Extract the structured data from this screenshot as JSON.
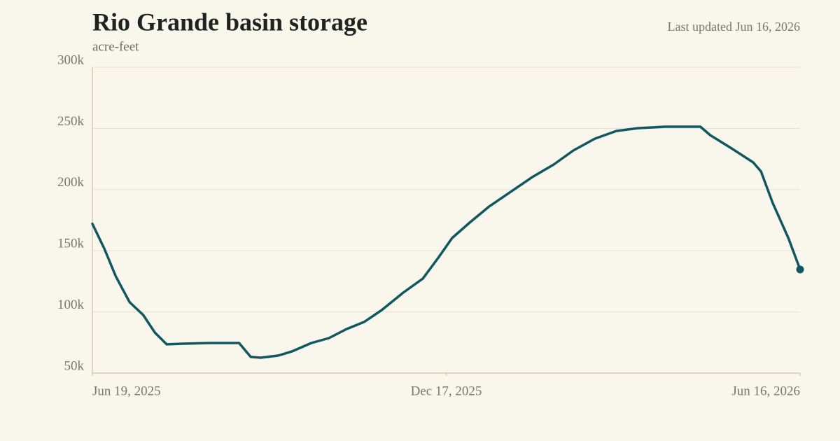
{
  "chart_data": {
    "type": "line",
    "title": "Rio Grande basin storage",
    "subtitle": "acre-feet",
    "annotation": "Last updated Jun 16, 2026",
    "x": [
      "2025-06-19",
      "2025-06-25",
      "2025-07-01",
      "2025-07-08",
      "2025-07-15",
      "2025-07-21",
      "2025-07-27",
      "2025-08-04",
      "2025-08-18",
      "2025-09-02",
      "2025-09-08",
      "2025-09-13",
      "2025-09-22",
      "2025-09-29",
      "2025-10-09",
      "2025-10-18",
      "2025-10-27",
      "2025-11-05",
      "2025-11-14",
      "2025-11-25",
      "2025-12-05",
      "2025-12-13",
      "2025-12-20",
      "2025-12-29",
      "2026-01-08",
      "2026-01-19",
      "2026-01-30",
      "2026-02-10",
      "2026-02-20",
      "2026-03-03",
      "2026-03-14",
      "2026-03-25",
      "2026-04-08",
      "2026-04-26",
      "2026-05-01",
      "2026-05-12",
      "2026-05-23",
      "2026-05-27",
      "2026-06-02",
      "2026-06-10",
      "2026-06-16"
    ],
    "series": [
      {
        "name": "Storage",
        "color": "#10575f",
        "values": [
          172000,
          152000,
          129000,
          108000,
          97500,
          83000,
          73500,
          74000,
          74600,
          74600,
          63200,
          62600,
          64300,
          67700,
          74600,
          78600,
          86000,
          91800,
          101500,
          115800,
          127200,
          144400,
          160400,
          173000,
          186200,
          198200,
          210200,
          220500,
          231900,
          241600,
          247900,
          250200,
          251400,
          251400,
          244500,
          233600,
          222200,
          214800,
          189000,
          160400,
          134700
        ]
      }
    ],
    "xlim": [
      "2025-06-19",
      "2026-06-16"
    ],
    "xticks": [
      {
        "value": "2025-06-19",
        "label": "Jun 19, 2025"
      },
      {
        "value": "2025-12-17",
        "label": "Dec 17, 2025"
      },
      {
        "value": "2026-06-16",
        "label": "Jun 16, 2026"
      }
    ],
    "ylim": [
      50000,
      300000
    ],
    "yticks": [
      {
        "value": 50000,
        "label": "50k"
      },
      {
        "value": 100000,
        "label": "100k"
      },
      {
        "value": 150000,
        "label": "150k"
      },
      {
        "value": 200000,
        "label": "200k"
      },
      {
        "value": 250000,
        "label": "250k"
      },
      {
        "value": 300000,
        "label": "300k"
      }
    ],
    "grid": true,
    "end_marker": true
  }
}
